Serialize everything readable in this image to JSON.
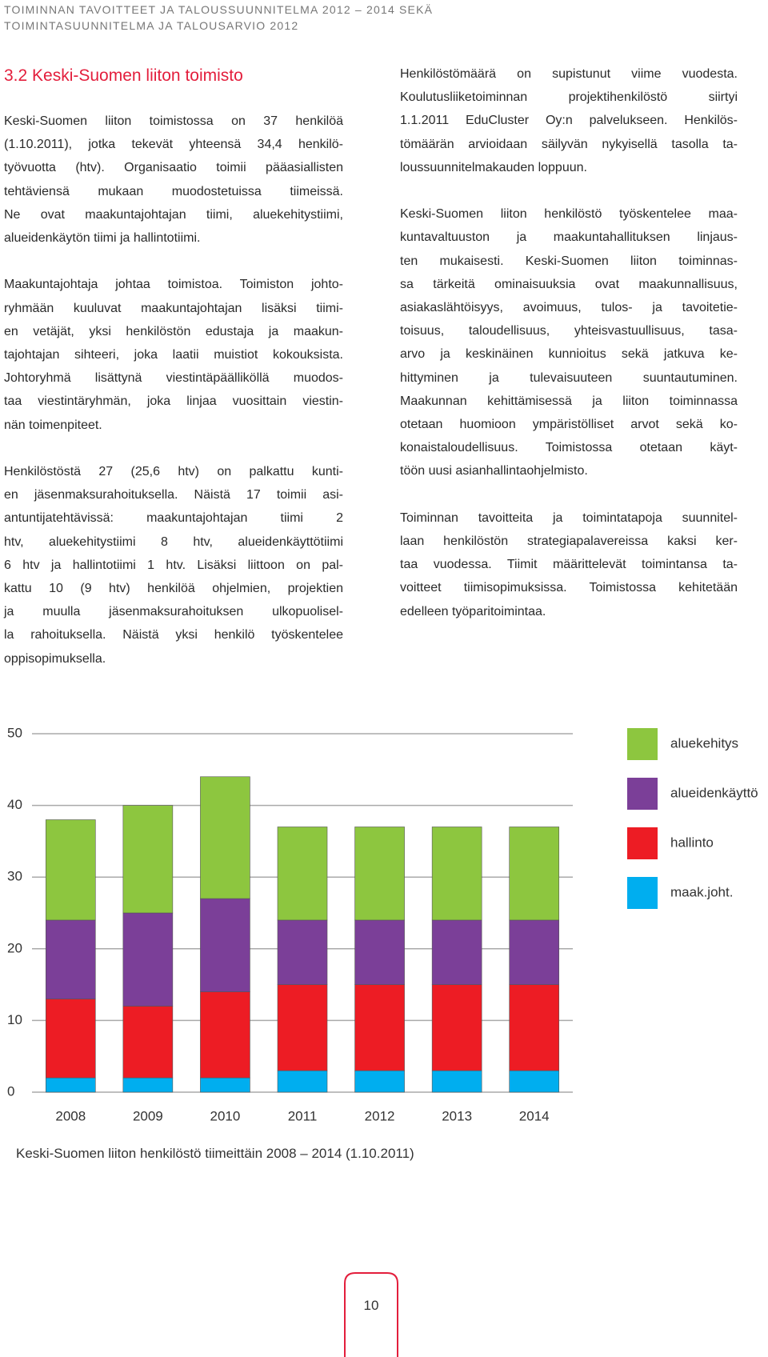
{
  "header": {
    "lines": [
      "TOIMINNAN TAVOITTEET JA TALOUSSUUNNITELMA 2012 – 2014 SEKÄ",
      "TOIMINTASUUNNITELMA JA TALOUSARVIO 2012"
    ]
  },
  "section_title": "3.2 Keski-Suomen liiton toimisto",
  "left_column": {
    "paragraphs": [
      [
        "Keski-Suomen liiton toimistossa on 37 henkilöä",
        "(1.10.2011), jotka tekevät yhteensä 34,4 henkilö-",
        "työvuotta (htv). Organisaatio toimii pääasiallisten",
        "tehtäviensä mukaan muodostetuissa tiimeissä.",
        "Ne ovat maakuntajohtajan tiimi, aluekehitystiimi,",
        "alueidenkäytön tiimi ja hallintotiimi."
      ],
      [
        "Maakuntajohtaja johtaa toimistoa. Toimiston johto-",
        "ryhmään kuuluvat maakuntajohtajan lisäksi tiimi-",
        "en vetäjät, yksi henkilöstön edustaja ja maakun-",
        "tajohtajan sihteeri, joka laatii muistiot kokouksista.",
        "Johtoryhmä lisättynä viestintäpäälliköllä muodos-",
        "taa viestintäryhmän, joka linjaa vuosittain viestin-",
        "nän toimenpiteet."
      ],
      [
        "Henkilöstöstä 27 (25,6 htv) on palkattu kunti-",
        "en jäsenmaksurahoituksella. Näistä 17 toimii asi-",
        "antuntijatehtävissä: maakuntajohtajan tiimi 2",
        "htv, aluekehitystiimi 8 htv, alueidenkäyttötiimi",
        "6 htv ja hallintotiimi 1 htv. Lisäksi liittoon on pal-",
        "kattu 10 (9 htv) henkilöä ohjelmien, projektien",
        "ja muulla jäsenmaksurahoituksen ulkopuolisel-",
        "la rahoituksella. Näistä yksi henkilö työskentelee",
        "oppisopimuksella."
      ]
    ]
  },
  "right_column": {
    "paragraphs": [
      [
        "Henkilöstömäärä on supistunut viime vuodesta.",
        "Koulutusliiketoiminnan projektihenkilöstö siirtyi",
        "1.1.2011 EduCluster Oy:n palvelukseen. Henkilös-",
        "tömäärän arvioidaan säilyvän nykyisellä tasolla ta-",
        "loussuunnitelmakauden loppuun."
      ],
      [
        "Keski-Suomen liiton henkilöstö työskentelee maa-",
        "kuntavaltuuston ja maakuntahallituksen linjaus-",
        "ten mukaisesti. Keski-Suomen liiton toiminnas-",
        "sa tärkeitä ominaisuuksia ovat maakunnallisuus,",
        "asiakaslähtöisyys, avoimuus, tulos- ja tavoitetie-",
        "toisuus, taloudellisuus, yhteisvastuullisuus, tasa-",
        "arvo ja keskinäinen kunnioitus sekä jatkuva ke-",
        "hittyminen ja tulevaisuuteen suuntautuminen.",
        "Maakunnan kehittämisessä ja liiton toiminnassa",
        "otetaan huomioon ympäristölliset arvot sekä ko-",
        "konaistaloudellisuus. Toimistossa otetaan käyt-",
        "töön uusi asianhallintaohjelmisto."
      ],
      [
        "Toiminnan tavoitteita ja toimintatapoja suunnitel-",
        "laan henkilöstön strategiapalavereissa kaksi ker-",
        "taa vuodessa. Tiimit määrittelevät toimintansa ta-",
        "voitteet tiimisopimuksissa. Toimistossa kehitetään",
        "edelleen työparitoimintaa."
      ]
    ]
  },
  "chart_data": {
    "type": "bar",
    "stacked": true,
    "categories": [
      "2008",
      "2009",
      "2010",
      "2011",
      "2012",
      "2013",
      "2014"
    ],
    "series": [
      {
        "name": "maak.joht.",
        "color": "#00aeef",
        "values": [
          2,
          2,
          2,
          3,
          3,
          3,
          3
        ]
      },
      {
        "name": "hallinto",
        "color": "#ed1c24",
        "values": [
          11,
          10,
          12,
          12,
          12,
          12,
          12
        ]
      },
      {
        "name": "alueidenkäyttö",
        "color": "#7b3f98",
        "values": [
          11,
          13,
          13,
          9,
          9,
          9,
          9
        ]
      },
      {
        "name": "aluekehitys",
        "color": "#8dc63f",
        "values": [
          14,
          15,
          17,
          13,
          13,
          13,
          13
        ]
      }
    ],
    "ylim": [
      0,
      50
    ],
    "yticks": [
      0,
      10,
      20,
      30,
      40,
      50
    ],
    "grid": true,
    "legend": "right"
  },
  "caption": "Keski-Suomen liiton henkilöstö tiimeittäin 2008 – 2014 (1.10.2011)",
  "page_number": "10"
}
